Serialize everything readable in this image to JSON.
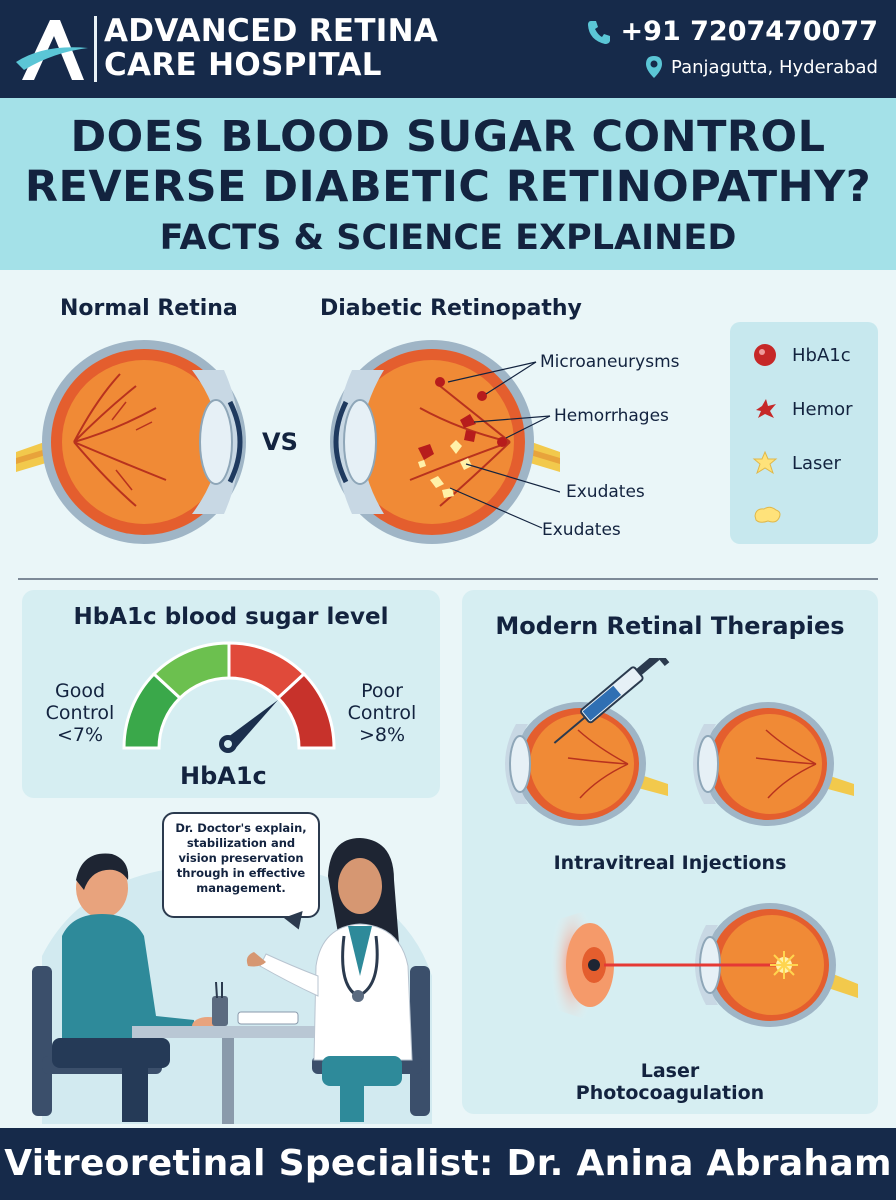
{
  "header": {
    "brand_line1": "ADVANCED RETINA",
    "brand_line2": "CARE HOSPITAL",
    "phone": "+91 7207470077",
    "location": "Panjagutta, Hyderabad",
    "logo_icon": "logo-a-icon",
    "phone_icon": "phone-icon",
    "location_icon": "location-pin-icon"
  },
  "title": {
    "line1": "DOES BLOOD SUGAR CONTROL",
    "line2": "REVERSE DIABETIC RETINOPATHY?",
    "line3": "FACTS & SCIENCE EXPLAINED"
  },
  "comparison": {
    "normal_label": "Normal Retina",
    "diabetic_label": "Diabetic Retinopathy",
    "vs": "VS",
    "callouts": [
      "Microaneurysms",
      "Hemorrhages",
      "Exudates",
      "Exudates"
    ]
  },
  "legend": {
    "items": [
      {
        "label": "HbA1c",
        "icon": "red-dot-icon"
      },
      {
        "label": "Hemor",
        "icon": "hemorrhage-splat-icon"
      },
      {
        "label": "Laser",
        "icon": "star-burst-icon"
      },
      {
        "label": "",
        "icon": "exudate-blob-icon"
      }
    ]
  },
  "hba1c": {
    "title": "HbA1c blood sugar level",
    "good_line1": "Good",
    "good_line2": "Control",
    "good_line3": "<7%",
    "poor_line1": "Poor",
    "poor_line2": "Control",
    "poor_line3": ">8%",
    "gauge_label": "HbA1c",
    "colors": {
      "good": "#3aa84a",
      "good_light": "#6cc04f",
      "poor": "#e04a3a",
      "poor_dark": "#c7322b"
    }
  },
  "consultation": {
    "speech": "Dr. Doctor's explain, stabilization and vision preservation through in effective management."
  },
  "therapies": {
    "title": "Modern Retinal Therapies",
    "injections_label": "Intravitreal Injections",
    "laser_line1": "Laser",
    "laser_line2": "Photocoagulation"
  },
  "footer": {
    "text": "Vitreoretinal Specialist: Dr. Anina Abraham"
  }
}
